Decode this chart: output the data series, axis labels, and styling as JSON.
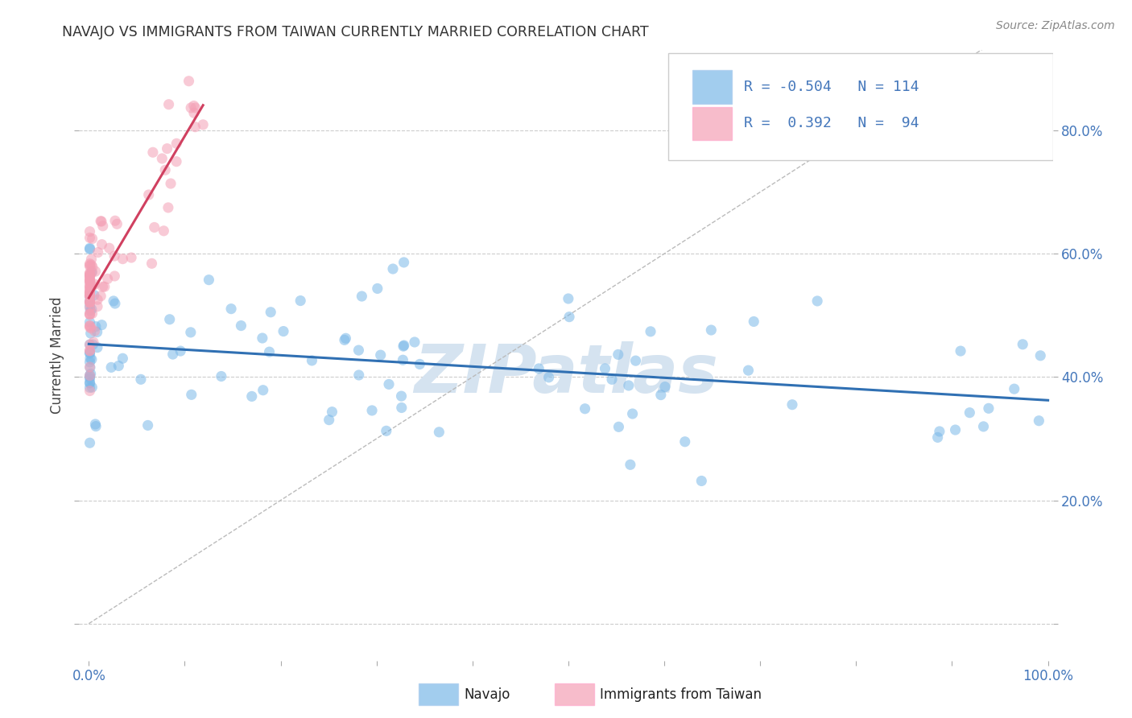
{
  "title": "NAVAJO VS IMMIGRANTS FROM TAIWAN CURRENTLY MARRIED CORRELATION CHART",
  "source": "Source: ZipAtlas.com",
  "ylabel": "Currently Married",
  "navajo_label": "Navajo",
  "taiwan_label": "Immigrants from Taiwan",
  "blue_color": "#7bb8e8",
  "pink_color": "#f4a0b5",
  "blue_line_color": "#3070b3",
  "pink_line_color": "#d04060",
  "watermark": "ZIPatlas",
  "watermark_color": "#d5e3f0",
  "background": "#ffffff",
  "legend_r_blue": "-0.504",
  "legend_n_blue": "114",
  "legend_r_pink": "0.392",
  "legend_n_pink": "94",
  "tick_color": "#4477bb",
  "grid_color": "#cccccc",
  "title_color": "#333333",
  "source_color": "#888888"
}
